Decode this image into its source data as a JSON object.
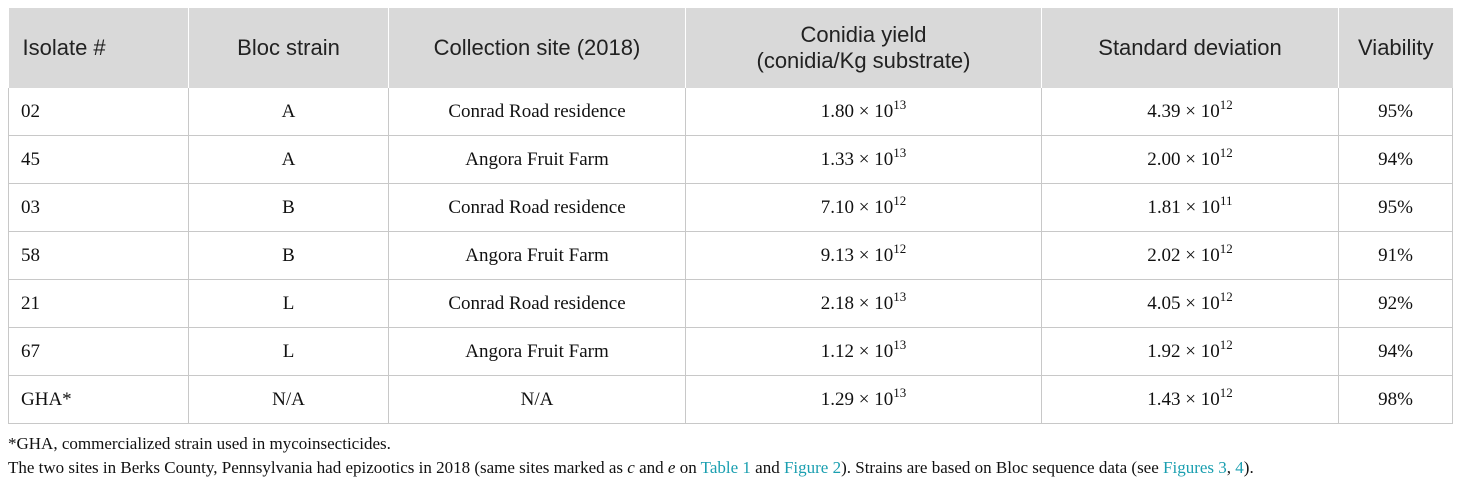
{
  "table": {
    "headers": [
      {
        "line1": "Isolate #",
        "line2": ""
      },
      {
        "line1": "Bloc strain",
        "line2": ""
      },
      {
        "line1": "Collection site (2018)",
        "line2": ""
      },
      {
        "line1": "Conidia yield",
        "line2": "(conidia/Kg substrate)"
      },
      {
        "line1": "Standard deviation",
        "line2": ""
      },
      {
        "line1": "Viability",
        "line2": ""
      }
    ],
    "rows": [
      {
        "isolate": "02",
        "strain": "A",
        "site": "Conrad Road residence",
        "yield_mant": "1.80 × 10",
        "yield_exp": "13",
        "sd_mant": "4.39 × 10",
        "sd_exp": "12",
        "viability": "95%"
      },
      {
        "isolate": "45",
        "strain": "A",
        "site": "Angora Fruit Farm",
        "yield_mant": "1.33 × 10",
        "yield_exp": "13",
        "sd_mant": "2.00 × 10",
        "sd_exp": "12",
        "viability": "94%"
      },
      {
        "isolate": "03",
        "strain": "B",
        "site": "Conrad Road residence",
        "yield_mant": "7.10 × 10",
        "yield_exp": "12",
        "sd_mant": "1.81 × 10",
        "sd_exp": "11",
        "viability": "95%"
      },
      {
        "isolate": "58",
        "strain": "B",
        "site": "Angora Fruit Farm",
        "yield_mant": "9.13 × 10",
        "yield_exp": "12",
        "sd_mant": "2.02 × 10",
        "sd_exp": "12",
        "viability": "91%"
      },
      {
        "isolate": "21",
        "strain": "L",
        "site": "Conrad Road residence",
        "yield_mant": "2.18 × 10",
        "yield_exp": "13",
        "sd_mant": "4.05 × 10",
        "sd_exp": "12",
        "viability": "92%"
      },
      {
        "isolate": "67",
        "strain": "L",
        "site": "Angora Fruit Farm",
        "yield_mant": "1.12 × 10",
        "yield_exp": "13",
        "sd_mant": "1.92 × 10",
        "sd_exp": "12",
        "viability": "94%"
      },
      {
        "isolate": "GHA*",
        "strain": "N/A",
        "site": "N/A",
        "yield_mant": "1.29 × 10",
        "yield_exp": "13",
        "sd_mant": "1.43 × 10",
        "sd_exp": "12",
        "viability": "98%"
      }
    ]
  },
  "footnotes": {
    "line1": "*GHA, commercialized strain used in mycoinsecticides.",
    "line2": {
      "part1": "The two sites in Berks County, Pennsylvania had epizootics in 2018 (same sites marked as ",
      "italic_c": "c",
      "part2": " and ",
      "italic_e": "e",
      "part3": " on ",
      "link_table": "Table 1",
      "part4": " and ",
      "link_figure2": "Figure 2",
      "part5": "). Strains are based on Bloc sequence data (see ",
      "link_figures": "Figures 3",
      "part6": ", ",
      "link_fig4": "4",
      "part7": ")."
    }
  },
  "colors": {
    "header_bg": "#d9d9d9",
    "border": "#c8c8c8",
    "link": "#1a9fb0"
  }
}
